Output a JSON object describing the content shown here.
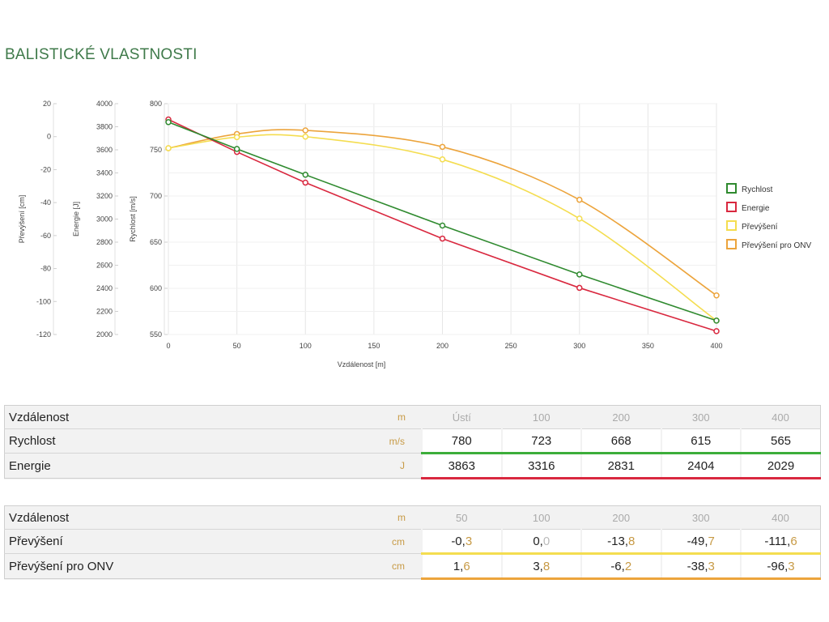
{
  "page": {
    "title": "BALISTICKÉ VLASTNOSTI"
  },
  "chart_data": {
    "type": "line",
    "xlabel": "Vzdálenost [m]",
    "x_ticks": [
      0,
      50,
      100,
      150,
      200,
      250,
      300,
      350,
      400
    ],
    "xlim": [
      0,
      400
    ],
    "axes": [
      {
        "id": "prev",
        "label": "Převýšení [cm]",
        "ylim": [
          -120,
          20
        ],
        "ticks": [
          20,
          0,
          -20,
          -40,
          -60,
          -80,
          -100,
          -120
        ]
      },
      {
        "id": "energy",
        "label": "Energie [J]",
        "ylim": [
          2000,
          4000
        ],
        "ticks": [
          4000,
          3800,
          3600,
          3400,
          3200,
          3000,
          2800,
          2600,
          2400,
          2200,
          2000
        ]
      },
      {
        "id": "speed",
        "label": "Rychlost [m/s]",
        "ylim": [
          550,
          800
        ],
        "ticks": [
          800,
          750,
          700,
          650,
          600,
          550
        ]
      }
    ],
    "series": [
      {
        "name": "Rychlost",
        "color": "#2f8a2f",
        "axis": "speed",
        "x": [
          0,
          50,
          100,
          200,
          300,
          400
        ],
        "y": [
          780,
          751,
          723,
          668,
          615,
          565
        ]
      },
      {
        "name": "Energie",
        "color": "#d9283f",
        "axis": "energy",
        "x": [
          0,
          50,
          100,
          200,
          300,
          400
        ],
        "y": [
          3863,
          3582,
          3316,
          2831,
          2404,
          2029
        ]
      },
      {
        "name": "Převýšení",
        "color": "#f4dd50",
        "axis": "prev",
        "x": [
          0,
          50,
          100,
          200,
          300,
          400
        ],
        "y": [
          -7,
          -0.3,
          0.0,
          -13.8,
          -49.7,
          -111.6
        ]
      },
      {
        "name": "Převýšení pro ONV",
        "color": "#eca43c",
        "axis": "prev",
        "x": [
          0,
          50,
          100,
          200,
          300,
          400
        ],
        "y": [
          -7,
          1.6,
          3.8,
          -6.2,
          -38.3,
          -96.3
        ]
      }
    ],
    "grid": true,
    "legend_position": "right"
  },
  "table1": {
    "rows": [
      {
        "label": "Vzdálenost",
        "unit": "m",
        "cells": [
          "Ústí",
          "100",
          "200",
          "300",
          "400"
        ]
      },
      {
        "label": "Rychlost",
        "unit": "m/s",
        "cells": [
          "780",
          "723",
          "668",
          "615",
          "565"
        ]
      },
      {
        "label": "Energie",
        "unit": "J",
        "cells": [
          "3863",
          "3316",
          "2831",
          "2404",
          "2029"
        ]
      }
    ]
  },
  "table2": {
    "rows": [
      {
        "label": "Vzdálenost",
        "unit": "m",
        "cells": [
          "50",
          "100",
          "200",
          "300",
          "400"
        ]
      },
      {
        "label": "Převýšení",
        "unit": "cm",
        "cells": [
          {
            "int": "-0,",
            "dec": "3"
          },
          {
            "int": "0,",
            "dec": "0"
          },
          {
            "int": "-13,",
            "dec": "8"
          },
          {
            "int": "-49,",
            "dec": "7"
          },
          {
            "int": "-111,",
            "dec": "6"
          }
        ]
      },
      {
        "label": "Převýšení pro ONV",
        "unit": "cm",
        "cells": [
          {
            "int": "1,",
            "dec": "6"
          },
          {
            "int": "3,",
            "dec": "8"
          },
          {
            "int": "-6,",
            "dec": "2"
          },
          {
            "int": "-38,",
            "dec": "3"
          },
          {
            "int": "-96,",
            "dec": "3"
          }
        ]
      }
    ]
  }
}
